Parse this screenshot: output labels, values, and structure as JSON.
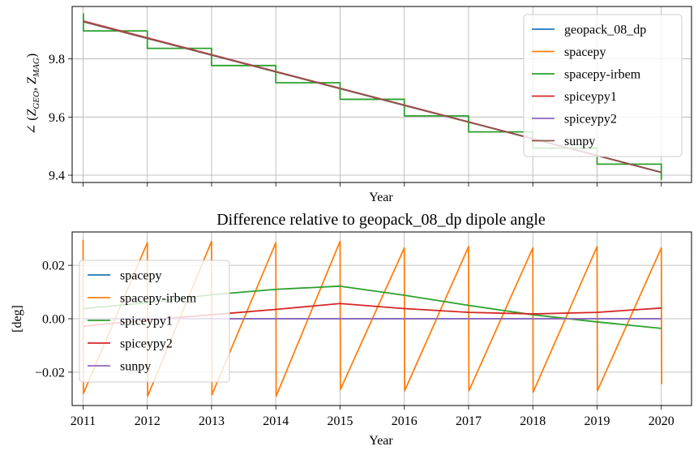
{
  "chart_data": [
    {
      "type": "line",
      "title": "",
      "xlabel": "Year",
      "ylabel": "∠ (Z_GEO, Z_MAG)",
      "ylabel_parts": {
        "angle": "∠ (",
        "z1": "Z",
        "s1": "GEO",
        "comma": ", ",
        "z2": "Z",
        "s2": "MAG",
        "close": ")"
      },
      "xlim": [
        2010.83,
        2020.47
      ],
      "ylim": [
        9.375,
        9.98
      ],
      "yticks": [
        9.4,
        9.6,
        9.8
      ],
      "ytick_labels": [
        "9.4",
        "9.6",
        "9.8"
      ],
      "xticks": [
        2011,
        2012,
        2013,
        2014,
        2015,
        2016,
        2017,
        2018,
        2019,
        2020
      ],
      "xtick_labels": [
        "",
        "",
        "",
        "",
        "",
        "",
        "",
        "",
        "",
        ""
      ],
      "grid": true,
      "legend": "upper right",
      "series": [
        {
          "name": "geopack_08_dp",
          "color": "#1f77b4",
          "shape": "linear",
          "x": [
            2011,
            2020
          ],
          "y": [
            9.928,
            9.41
          ]
        },
        {
          "name": "spacepy",
          "color": "#ff7f0e",
          "shape": "linear",
          "x": [
            2011,
            2020
          ],
          "y": [
            9.928,
            9.41
          ]
        },
        {
          "name": "spacepy-irbem",
          "color": "#2ca02c",
          "shape": "step",
          "x": [
            2011,
            2011.005,
            2012,
            2013,
            2014,
            2015,
            2016,
            2017,
            2018,
            2019,
            2019.995,
            2020
          ],
          "y": [
            9.955,
            9.896,
            9.836,
            9.777,
            9.718,
            9.661,
            9.604,
            9.549,
            9.493,
            9.438,
            9.438,
            9.384
          ]
        },
        {
          "name": "spiceypy1",
          "color": "#d62728",
          "shape": "linear",
          "x": [
            2011,
            2020
          ],
          "y": [
            9.93,
            9.41
          ]
        },
        {
          "name": "spiceypy2",
          "color": "#9467bd",
          "shape": "linear",
          "x": [
            2011,
            2020
          ],
          "y": [
            9.928,
            9.41
          ]
        },
        {
          "name": "sunpy",
          "color": "#8c564b",
          "shape": "linear",
          "x": [
            2011,
            2020
          ],
          "y": [
            9.928,
            9.41
          ]
        }
      ]
    },
    {
      "type": "line",
      "title": "Difference relative to geopack_08_dp dipole angle",
      "xlabel": "Year",
      "ylabel": "[deg]",
      "xlim": [
        2010.83,
        2020.47
      ],
      "ylim": [
        -0.0325,
        0.0325
      ],
      "yticks": [
        -0.02,
        0,
        0.02
      ],
      "ytick_labels": [
        "−0.02",
        "0.00",
        "0.02"
      ],
      "xticks": [
        2011,
        2012,
        2013,
        2014,
        2015,
        2016,
        2017,
        2018,
        2019,
        2020
      ],
      "xtick_labels": [
        "2011",
        "2012",
        "2013",
        "2014",
        "2015",
        "2016",
        "2017",
        "2018",
        "2019",
        "2020"
      ],
      "grid": true,
      "legend": "center left",
      "series": [
        {
          "name": "spacepy",
          "color": "#1f77b4",
          "x": [
            2011,
            2020
          ],
          "y": [
            0,
            0
          ]
        },
        {
          "name": "spacepy-irbem",
          "color": "#ff7f0e",
          "x": [
            2011,
            2011.005,
            2012,
            2012.005,
            2013,
            2013.005,
            2014,
            2014.005,
            2015,
            2015.005,
            2016,
            2016.005,
            2017,
            2017.005,
            2018,
            2018.005,
            2019,
            2019.005,
            2020,
            2020.005
          ],
          "y": [
            0.0295,
            -0.028,
            0.0285,
            -0.029,
            0.029,
            -0.0285,
            0.0285,
            -0.029,
            0.029,
            -0.0265,
            0.0265,
            -0.027,
            0.027,
            -0.027,
            0.0265,
            -0.0275,
            0.027,
            -0.027,
            0.0265,
            -0.0245
          ]
        },
        {
          "name": "spiceypy1",
          "color": "#2ca02c",
          "x": [
            2011,
            2012,
            2013,
            2014,
            2015,
            2016,
            2017,
            2018,
            2019,
            2020
          ],
          "y": [
            0.0038,
            0.006,
            0.009,
            0.011,
            0.0122,
            0.0088,
            0.005,
            0.0015,
            -0.0012,
            -0.0036
          ]
        },
        {
          "name": "spiceypy2",
          "color": "#d62728",
          "x": [
            2011,
            2012,
            2013,
            2014,
            2015,
            2016,
            2017,
            2018,
            2019,
            2020
          ],
          "y": [
            -0.0028,
            -0.0005,
            0.0015,
            0.0035,
            0.0057,
            0.0038,
            0.0024,
            0.0018,
            0.0024,
            0.004
          ]
        },
        {
          "name": "sunpy",
          "color": "#9467bd",
          "x": [
            2011,
            2020
          ],
          "y": [
            0,
            0
          ]
        }
      ]
    }
  ]
}
